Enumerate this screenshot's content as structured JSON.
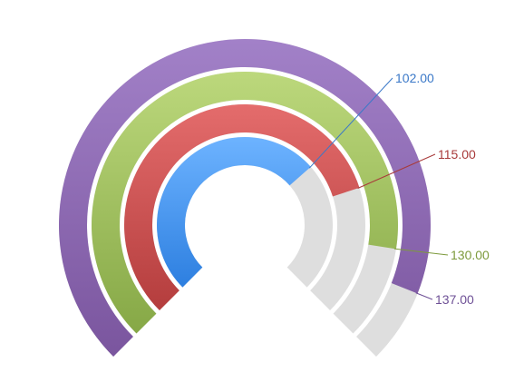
{
  "chart_data": {
    "type": "radial-bar",
    "title": "",
    "max": 150,
    "series": [
      {
        "value": 102.0,
        "label": "102.00",
        "color_top": "#6db3ff",
        "color_bottom": "#2d7fe0",
        "label_color": "#3a78c8"
      },
      {
        "value": 115.0,
        "label": "115.00",
        "color_top": "#e46c6c",
        "color_bottom": "#b43d3d",
        "label_color": "#a83a3a"
      },
      {
        "value": 130.0,
        "label": "130.00",
        "color_top": "#bcd87c",
        "color_bottom": "#86a846",
        "label_color": "#7d9a3c"
      },
      {
        "value": 137.0,
        "label": "137.00",
        "color_top": "#a281c8",
        "color_bottom": "#7a559e",
        "label_color": "#6e5096"
      }
    ],
    "track_color": "#dedede"
  }
}
